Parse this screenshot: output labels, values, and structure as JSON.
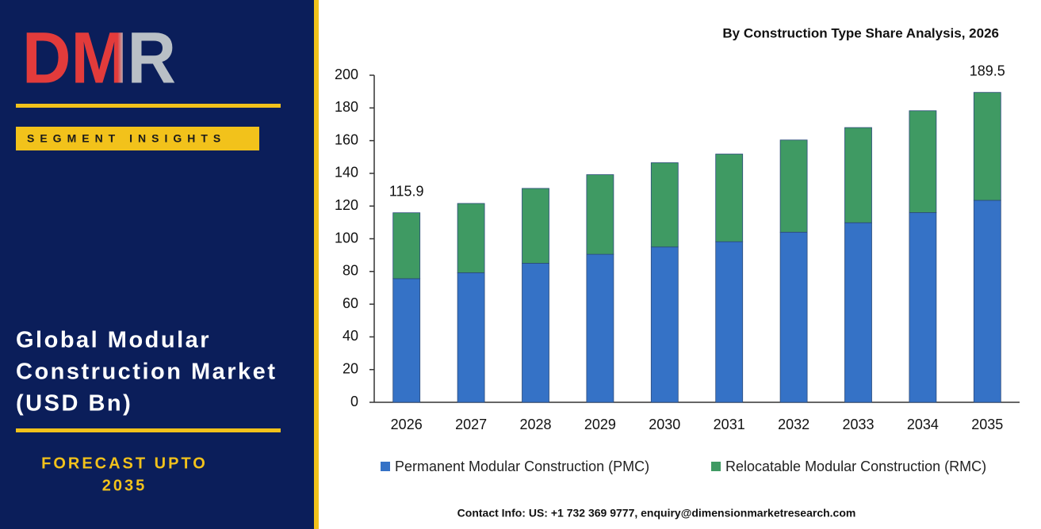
{
  "brand": {
    "logo": "DMR",
    "badge": "SEGMENT INSIGHTS",
    "title_lines": [
      "Global Modular",
      "Construction Market",
      "(USD Bn)"
    ],
    "forecast_lines": [
      "FORECAST UPTO",
      "2035"
    ]
  },
  "chart_data": {
    "type": "stacked_bar",
    "title": "By Construction Type Share Analysis, 2026",
    "categories": [
      "2026",
      "2027",
      "2028",
      "2029",
      "2030",
      "2031",
      "2032",
      "2033",
      "2034",
      "2035"
    ],
    "series": [
      {
        "name": "Permanent Modular Construction (PMC)",
        "color": "#3572c6",
        "values": [
          75.6,
          79.2,
          85,
          90.5,
          95,
          98.2,
          104,
          109.8,
          116,
          123.5
        ]
      },
      {
        "name": "Relocatable Modular Construction (RMC)",
        "color": "#3f9a63",
        "values": [
          40.3,
          42.4,
          45.8,
          48.7,
          51.5,
          53.6,
          56.4,
          58.2,
          62.3,
          66.0
        ]
      }
    ],
    "totals": [
      115.9,
      null,
      null,
      null,
      null,
      null,
      null,
      null,
      null,
      189.5
    ],
    "ylim": [
      0,
      200
    ],
    "yticks": [
      0,
      20,
      40,
      60,
      80,
      100,
      120,
      140,
      160,
      180,
      200
    ]
  },
  "footer": "Contact Info: US: +1 732 369 9777, enquiry@dimensionmarketresearch.com"
}
